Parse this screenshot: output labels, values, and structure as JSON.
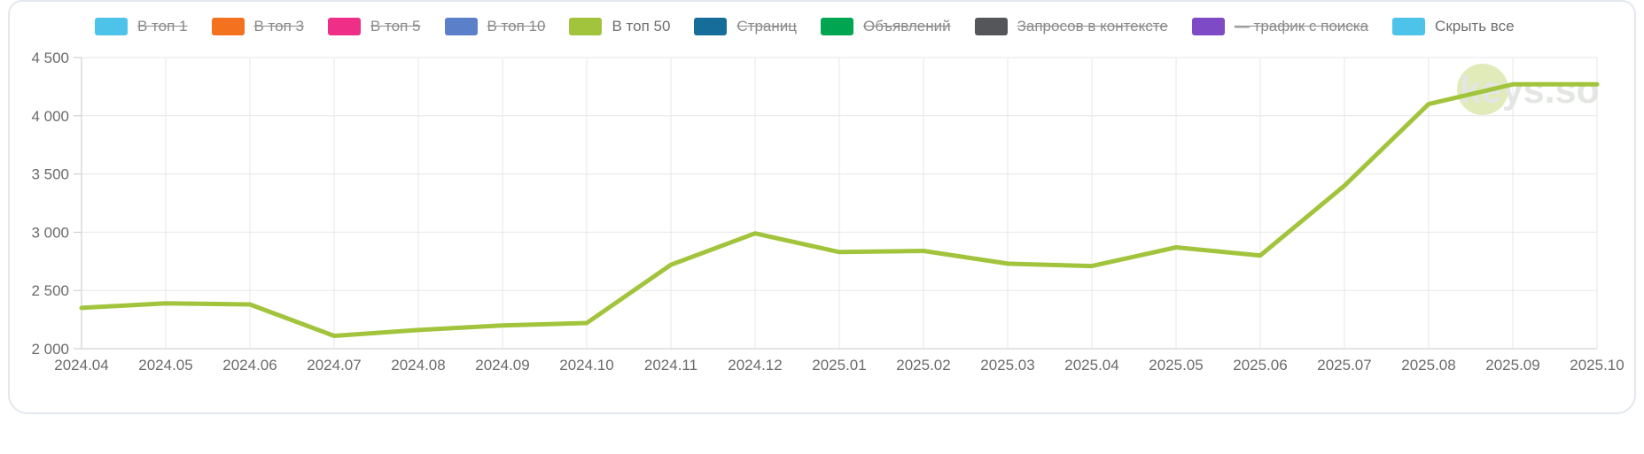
{
  "legend": {
    "items": [
      {
        "label": "В топ 1",
        "color": "#4dc3ea",
        "struck": true
      },
      {
        "label": "В топ 3",
        "color": "#f4711f",
        "struck": true
      },
      {
        "label": "В топ 5",
        "color": "#ee2e87",
        "struck": true
      },
      {
        "label": "В топ 10",
        "color": "#5b7fc9",
        "struck": true
      },
      {
        "label": "В топ 50",
        "color": "#a2c43c",
        "struck": false
      },
      {
        "label": "Страниц",
        "color": "#176d99",
        "struck": true
      },
      {
        "label": "Объявлений",
        "color": "#00a551",
        "struck": true
      },
      {
        "label": "Запросов в контексте",
        "color": "#55565a",
        "struck": true
      },
      {
        "label": "— трафик с поиска",
        "color": "#7e4ac6",
        "struck": true
      },
      {
        "label": "Скрыть все",
        "color": "#4dc3ea",
        "struck": false
      }
    ]
  },
  "watermark": {
    "text": "keys.so",
    "circle_color": "#a5c637",
    "text_color": "#e3e6e2"
  },
  "chart_data": {
    "type": "line",
    "title": "",
    "xlabel": "",
    "ylabel": "",
    "x_labels": [
      "2024.04",
      "2024.05",
      "2024.06",
      "2024.07",
      "2024.08",
      "2024.09",
      "2024.10",
      "2024.11",
      "2024.12",
      "2025.01",
      "2025.02",
      "2025.03",
      "2025.04",
      "2025.05",
      "2025.06",
      "2025.07",
      "2025.08",
      "2025.09",
      "2025.10"
    ],
    "series": [
      {
        "name": "В топ 50",
        "color": "#a2c43c",
        "values": [
          2350,
          2390,
          2380,
          2110,
          2160,
          2200,
          2220,
          2720,
          2990,
          2830,
          2840,
          2730,
          2710,
          2870,
          2800,
          3400,
          4100,
          4270,
          4270
        ]
      }
    ],
    "ylim": [
      2000,
      4500
    ],
    "y_ticks": [
      {
        "value": 2000,
        "label": "2 000"
      },
      {
        "value": 2500,
        "label": "2 500"
      },
      {
        "value": 3000,
        "label": "3 000"
      },
      {
        "value": 3500,
        "label": "3 500"
      },
      {
        "value": 4000,
        "label": "4 000"
      },
      {
        "value": 4500,
        "label": "4 500"
      }
    ],
    "grid": true,
    "legend_position": "top",
    "colors": {
      "grid_line": "#e7e7e7",
      "axis_line": "#c9c9c9",
      "tick_text": "#6b6b6b"
    }
  }
}
